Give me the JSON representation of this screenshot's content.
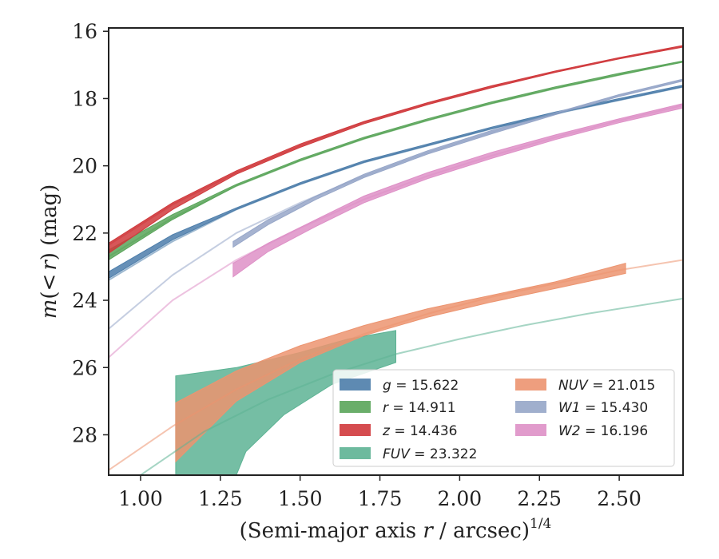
{
  "chart_data": {
    "type": "area",
    "xlabel": "(Semi-major axis r / arcsec)^{1/4}",
    "xlabel_parts": {
      "main": "(Semi-major axis ",
      "var": "r",
      "rest": " / arcsec)",
      "sup": "1/4"
    },
    "ylabel": "m(<r) (mag)",
    "ylabel_parts": {
      "var": "m",
      "paren_open": "(",
      "lt": "<",
      "r": "r",
      "paren_close": ")",
      "unit": " (mag)"
    },
    "xlim": [
      0.9,
      2.7
    ],
    "ylim": [
      29.2,
      15.9
    ],
    "y_inverted": true,
    "x_ticks": [
      1.0,
      1.25,
      1.5,
      1.75,
      2.0,
      2.25,
      2.5
    ],
    "x_tick_labels": [
      "1.00",
      "1.25",
      "1.50",
      "1.75",
      "2.00",
      "2.25",
      "2.50"
    ],
    "y_ticks": [
      16,
      18,
      20,
      22,
      24,
      26,
      28
    ],
    "y_tick_labels": [
      "16",
      "18",
      "20",
      "22",
      "24",
      "26",
      "28"
    ],
    "grid": false,
    "legend_position": "lower-right",
    "series": [
      {
        "name": "g",
        "label_var": "g",
        "label_value": " = 15.622",
        "color": "#4c7daa",
        "model": [
          [
            0.9,
            23.4
          ],
          [
            1.1,
            22.25
          ],
          [
            1.3,
            21.3
          ],
          [
            1.5,
            20.55
          ],
          [
            1.7,
            19.9
          ],
          [
            1.9,
            19.4
          ],
          [
            2.1,
            18.9
          ],
          [
            2.3,
            18.45
          ],
          [
            2.5,
            18.05
          ],
          [
            2.7,
            17.65
          ]
        ],
        "upper": [
          [
            0.9,
            23.15
          ],
          [
            1.1,
            22.05
          ],
          [
            1.3,
            21.25
          ],
          [
            1.5,
            20.5
          ],
          [
            1.7,
            19.85
          ],
          [
            1.9,
            19.35
          ],
          [
            2.1,
            18.85
          ],
          [
            2.3,
            18.4
          ],
          [
            2.5,
            18.0
          ],
          [
            2.7,
            17.6
          ]
        ],
        "lower": [
          [
            0.9,
            23.35
          ],
          [
            1.1,
            22.2
          ],
          [
            1.3,
            21.3
          ],
          [
            1.5,
            20.55
          ],
          [
            1.7,
            19.9
          ],
          [
            1.9,
            19.4
          ],
          [
            2.1,
            18.9
          ],
          [
            2.3,
            18.45
          ],
          [
            2.5,
            18.05
          ],
          [
            2.7,
            17.65
          ]
        ]
      },
      {
        "name": "r",
        "label_var": "r",
        "label_value": " = 14.911",
        "color": "#5aa55a",
        "model": [
          [
            0.9,
            22.7
          ],
          [
            1.1,
            21.55
          ],
          [
            1.3,
            20.6
          ],
          [
            1.5,
            19.85
          ],
          [
            1.7,
            19.2
          ],
          [
            1.9,
            18.65
          ],
          [
            2.1,
            18.15
          ],
          [
            2.3,
            17.7
          ],
          [
            2.5,
            17.3
          ],
          [
            2.7,
            16.9
          ]
        ],
        "upper": [
          [
            0.9,
            22.5
          ],
          [
            1.1,
            21.45
          ],
          [
            1.3,
            20.55
          ],
          [
            1.5,
            19.8
          ],
          [
            1.7,
            19.15
          ],
          [
            1.9,
            18.6
          ],
          [
            2.1,
            18.1
          ],
          [
            2.3,
            17.65
          ],
          [
            2.5,
            17.25
          ],
          [
            2.7,
            16.88
          ]
        ],
        "lower": [
          [
            0.9,
            22.8
          ],
          [
            1.1,
            21.6
          ],
          [
            1.3,
            20.6
          ],
          [
            1.5,
            19.85
          ],
          [
            1.7,
            19.2
          ],
          [
            1.9,
            18.65
          ],
          [
            2.1,
            18.15
          ],
          [
            2.3,
            17.7
          ],
          [
            2.5,
            17.3
          ],
          [
            2.7,
            16.92
          ]
        ]
      },
      {
        "name": "z",
        "label_var": "z",
        "label_value": " = 14.436",
        "color": "#d0393c",
        "model": [
          [
            0.9,
            22.35
          ],
          [
            1.1,
            21.15
          ],
          [
            1.3,
            20.2
          ],
          [
            1.5,
            19.4
          ],
          [
            1.7,
            18.7
          ],
          [
            1.9,
            18.15
          ],
          [
            2.1,
            17.65
          ],
          [
            2.3,
            17.2
          ],
          [
            2.5,
            16.8
          ],
          [
            2.7,
            16.45
          ]
        ],
        "upper": [
          [
            0.9,
            22.3
          ],
          [
            1.1,
            21.1
          ],
          [
            1.3,
            20.15
          ],
          [
            1.5,
            19.35
          ],
          [
            1.7,
            18.68
          ],
          [
            1.9,
            18.12
          ],
          [
            2.1,
            17.62
          ],
          [
            2.3,
            17.18
          ],
          [
            2.5,
            16.78
          ],
          [
            2.7,
            16.42
          ]
        ],
        "lower": [
          [
            0.9,
            22.6
          ],
          [
            1.1,
            21.3
          ],
          [
            1.3,
            20.25
          ],
          [
            1.5,
            19.45
          ],
          [
            1.7,
            18.75
          ],
          [
            1.9,
            18.18
          ],
          [
            2.1,
            17.68
          ],
          [
            2.3,
            17.22
          ],
          [
            2.5,
            16.82
          ],
          [
            2.7,
            16.47
          ]
        ]
      },
      {
        "name": "FUV",
        "label_var": "FUV",
        "label_value": " = 23.322",
        "color": "#5db394",
        "model": [
          [
            1.0,
            29.2
          ],
          [
            1.2,
            27.9
          ],
          [
            1.4,
            26.95
          ],
          [
            1.6,
            26.2
          ],
          [
            1.8,
            25.6
          ],
          [
            2.0,
            25.15
          ],
          [
            2.2,
            24.75
          ],
          [
            2.4,
            24.4
          ],
          [
            2.6,
            24.1
          ],
          [
            2.7,
            23.95
          ]
        ],
        "upper": [
          [
            1.11,
            26.25
          ],
          [
            1.3,
            26.0
          ],
          [
            1.5,
            25.55
          ],
          [
            1.65,
            25.15
          ],
          [
            1.8,
            24.9
          ]
        ],
        "lower": [
          [
            1.11,
            29.2
          ],
          [
            1.3,
            29.2
          ],
          [
            1.33,
            28.5
          ],
          [
            1.45,
            27.4
          ],
          [
            1.6,
            26.5
          ],
          [
            1.8,
            25.85
          ]
        ]
      },
      {
        "name": "NUV",
        "label_var": "NUV",
        "label_value": " = 21.015",
        "color": "#ec9470",
        "model": [
          [
            0.9,
            29.05
          ],
          [
            1.1,
            27.75
          ],
          [
            1.3,
            26.65
          ],
          [
            1.5,
            25.75
          ],
          [
            1.7,
            25.0
          ],
          [
            1.9,
            24.4
          ],
          [
            2.1,
            23.9
          ],
          [
            2.3,
            23.5
          ],
          [
            2.5,
            23.1
          ],
          [
            2.7,
            22.8
          ]
        ],
        "upper": [
          [
            1.11,
            27.05
          ],
          [
            1.3,
            26.1
          ],
          [
            1.5,
            25.35
          ],
          [
            1.7,
            24.75
          ],
          [
            1.9,
            24.25
          ],
          [
            2.1,
            23.85
          ],
          [
            2.3,
            23.45
          ],
          [
            2.52,
            22.9
          ]
        ],
        "lower": [
          [
            1.11,
            28.8
          ],
          [
            1.3,
            27.0
          ],
          [
            1.5,
            25.85
          ],
          [
            1.7,
            25.05
          ],
          [
            1.9,
            24.5
          ],
          [
            2.1,
            24.05
          ],
          [
            2.3,
            23.65
          ],
          [
            2.52,
            23.2
          ]
        ]
      },
      {
        "name": "W1",
        "label_var": "W1",
        "label_value": " = 15.430",
        "color": "#96a6c8",
        "model": [
          [
            0.9,
            24.85
          ],
          [
            1.1,
            23.25
          ],
          [
            1.3,
            22.0
          ],
          [
            1.5,
            21.1
          ],
          [
            1.7,
            20.3
          ],
          [
            1.9,
            19.6
          ],
          [
            2.1,
            19.0
          ],
          [
            2.3,
            18.45
          ],
          [
            2.5,
            17.9
          ],
          [
            2.7,
            17.45
          ]
        ],
        "upper": [
          [
            1.29,
            22.25
          ],
          [
            1.4,
            21.6
          ],
          [
            1.55,
            20.9
          ],
          [
            1.7,
            20.25
          ],
          [
            1.9,
            19.55
          ],
          [
            2.1,
            18.95
          ],
          [
            2.3,
            18.42
          ],
          [
            2.5,
            17.88
          ],
          [
            2.7,
            17.42
          ]
        ],
        "lower": [
          [
            1.29,
            22.42
          ],
          [
            1.4,
            21.75
          ],
          [
            1.55,
            21.0
          ],
          [
            1.7,
            20.35
          ],
          [
            1.9,
            19.65
          ],
          [
            2.1,
            19.05
          ],
          [
            2.3,
            18.48
          ],
          [
            2.5,
            17.94
          ],
          [
            2.7,
            17.48
          ]
        ]
      },
      {
        "name": "W2",
        "label_var": "W2",
        "label_value": " = 16.196",
        "color": "#de90c7",
        "model": [
          [
            0.9,
            25.7
          ],
          [
            1.1,
            24.0
          ],
          [
            1.3,
            22.8
          ],
          [
            1.5,
            21.85
          ],
          [
            1.7,
            21.0
          ],
          [
            1.9,
            20.3
          ],
          [
            2.1,
            19.7
          ],
          [
            2.3,
            19.15
          ],
          [
            2.5,
            18.65
          ],
          [
            2.7,
            18.2
          ]
        ],
        "upper": [
          [
            1.29,
            22.9
          ],
          [
            1.4,
            22.3
          ],
          [
            1.55,
            21.6
          ],
          [
            1.7,
            20.9
          ],
          [
            1.9,
            20.2
          ],
          [
            2.1,
            19.6
          ],
          [
            2.3,
            19.08
          ],
          [
            2.5,
            18.6
          ],
          [
            2.7,
            18.15
          ]
        ],
        "lower": [
          [
            1.29,
            23.3
          ],
          [
            1.4,
            22.55
          ],
          [
            1.55,
            21.8
          ],
          [
            1.7,
            21.1
          ],
          [
            1.9,
            20.38
          ],
          [
            2.1,
            19.78
          ],
          [
            2.3,
            19.22
          ],
          [
            2.5,
            18.72
          ],
          [
            2.7,
            18.28
          ]
        ]
      }
    ]
  }
}
